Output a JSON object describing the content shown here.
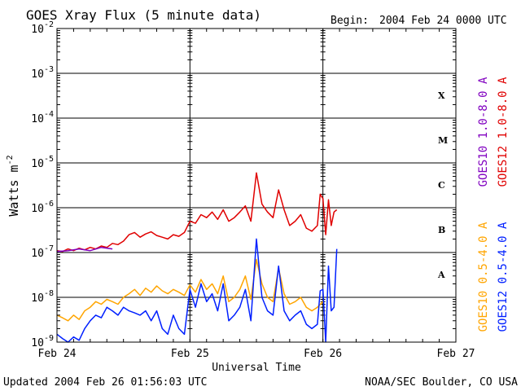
{
  "chart_data": {
    "type": "line",
    "title": "GOES Xray Flux (5 minute data)",
    "begin_label": "Begin:",
    "begin_value": "2004 Feb 24 0000 UTC",
    "ylabel": "Watts m",
    "ylabel_sup": "-2",
    "xlabel": "Universal Time",
    "yscale": "log",
    "ylim": [
      1e-09,
      0.01
    ],
    "xlim": [
      0,
      72
    ],
    "x_unit_note": "",
    "y_ticks": [
      {
        "base": "10",
        "exp": "-2",
        "value": 0.01
      },
      {
        "base": "10",
        "exp": "-3",
        "value": 0.001
      },
      {
        "base": "10",
        "exp": "-4",
        "value": 0.0001
      },
      {
        "base": "10",
        "exp": "-5",
        "value": 1e-05
      },
      {
        "base": "10",
        "exp": "-6",
        "value": 1e-06
      },
      {
        "base": "10",
        "exp": "-7",
        "value": 1e-07
      },
      {
        "base": "10",
        "exp": "-8",
        "value": 1e-08
      },
      {
        "base": "10",
        "exp": "-9",
        "value": 1e-09
      }
    ],
    "x_ticks": [
      {
        "label": "Feb 24",
        "hour": 0
      },
      {
        "label": "Feb 25",
        "hour": 24
      },
      {
        "label": "Feb 26",
        "hour": 48
      },
      {
        "label": "Feb 27",
        "hour": 72
      }
    ],
    "flare_classes": [
      {
        "label": "X",
        "value": 0.00032
      },
      {
        "label": "M",
        "value": 3.2e-05
      },
      {
        "label": "C",
        "value": 3.2e-06
      },
      {
        "label": "B",
        "value": 3.2e-07
      },
      {
        "label": "A",
        "value": 3.2e-08
      }
    ],
    "legend": [
      {
        "text": "GOES10 1.0-8.0 A",
        "color": "#8000c0",
        "group": "long"
      },
      {
        "text": "GOES12 1.0-8.0 A",
        "color": "#e00000",
        "group": "long"
      },
      {
        "text": "GOES10 0.5-4.0 A",
        "color": "#ffa500",
        "group": "short"
      },
      {
        "text": "GOES12 0.5-4.0 A",
        "color": "#0020ff",
        "group": "short"
      }
    ],
    "series": [
      {
        "name": "GOES12 1.0-8.0 A",
        "color": "#e00000",
        "x": [
          0,
          1,
          2,
          3,
          4,
          5,
          6,
          7,
          8,
          9,
          10,
          11,
          12,
          13,
          14,
          15,
          16,
          17,
          18,
          19,
          20,
          21,
          22,
          23,
          24,
          25,
          26,
          27,
          28,
          29,
          30,
          31,
          32,
          33,
          34,
          35,
          36,
          37,
          38,
          39,
          40,
          41,
          42,
          43,
          44,
          45,
          46,
          47,
          47.5,
          48,
          48.5,
          49,
          49.5,
          50,
          50.5
        ],
        "y": [
          1.1e-07,
          1.05e-07,
          1.2e-07,
          1.1e-07,
          1.25e-07,
          1.15e-07,
          1.3e-07,
          1.2e-07,
          1.4e-07,
          1.3e-07,
          1.6e-07,
          1.5e-07,
          1.8e-07,
          2.5e-07,
          2.8e-07,
          2.2e-07,
          2.6e-07,
          2.9e-07,
          2.4e-07,
          2.2e-07,
          2e-07,
          2.5e-07,
          2.3e-07,
          2.8e-07,
          5e-07,
          4.5e-07,
          7e-07,
          6e-07,
          8e-07,
          5.5e-07,
          9e-07,
          5e-07,
          6e-07,
          8e-07,
          1.1e-06,
          5e-07,
          6e-06,
          1.2e-06,
          8e-07,
          6e-07,
          2.5e-06,
          9e-07,
          4e-07,
          5e-07,
          7e-07,
          3.5e-07,
          3e-07,
          4e-07,
          2e-06,
          1.6e-06,
          2.5e-07,
          1.5e-06,
          4e-07,
          8e-07,
          9e-07
        ]
      },
      {
        "name": "GOES10 1.0-8.0 A",
        "color": "#8000c0",
        "x": [
          0,
          2,
          4,
          6,
          8,
          10
        ],
        "y": [
          1.05e-07,
          1.1e-07,
          1.2e-07,
          1.1e-07,
          1.3e-07,
          1.2e-07
        ]
      },
      {
        "name": "GOES10 0.5-4.0 A",
        "color": "#ffa500",
        "x": [
          0,
          1,
          2,
          3,
          4,
          5,
          6,
          7,
          8,
          9,
          10,
          11,
          12,
          13,
          14,
          15,
          16,
          17,
          18,
          19,
          20,
          21,
          22,
          23,
          24,
          25,
          26,
          27,
          28,
          29,
          30,
          31,
          32,
          33,
          34,
          35,
          36,
          37,
          38,
          39,
          40,
          41,
          42,
          43,
          44,
          45,
          46,
          47,
          48
        ],
        "y": [
          4e-09,
          3.5e-09,
          3e-09,
          4e-09,
          3.2e-09,
          5e-09,
          6e-09,
          8e-09,
          7e-09,
          9e-09,
          8e-09,
          7e-09,
          1e-08,
          1.2e-08,
          1.5e-08,
          1.1e-08,
          1.6e-08,
          1.3e-08,
          1.8e-08,
          1.4e-08,
          1.2e-08,
          1.5e-08,
          1.3e-08,
          1.1e-08,
          1.9e-08,
          1.3e-08,
          2.5e-08,
          1.5e-08,
          2e-08,
          1.2e-08,
          3e-08,
          8e-09,
          1e-08,
          1.5e-08,
          3e-08,
          9e-09,
          7e-08,
          2e-08,
          1e-08,
          8e-09,
          4.5e-08,
          1.2e-08,
          7e-09,
          8e-09,
          1e-08,
          6e-09,
          5e-09,
          6e-09,
          8e-09
        ]
      },
      {
        "name": "GOES12 0.5-4.0 A",
        "color": "#0020ff",
        "x": [
          0,
          1,
          2,
          3,
          4,
          5,
          6,
          7,
          8,
          9,
          10,
          11,
          12,
          13,
          14,
          15,
          16,
          17,
          18,
          19,
          20,
          21,
          22,
          23,
          24,
          25,
          26,
          27,
          28,
          29,
          30,
          31,
          32,
          33,
          34,
          35,
          36,
          37,
          38,
          39,
          40,
          41,
          42,
          43,
          44,
          45,
          46,
          47,
          47.5,
          48,
          48.5,
          49,
          49.5,
          50,
          50.5
        ],
        "y": [
          1.5e-09,
          1.2e-09,
          1e-09,
          1.3e-09,
          1.1e-09,
          2e-09,
          3e-09,
          4e-09,
          3.5e-09,
          6e-09,
          5e-09,
          4e-09,
          6e-09,
          5e-09,
          4.5e-09,
          4e-09,
          5e-09,
          3e-09,
          5e-09,
          2e-09,
          1.5e-09,
          4e-09,
          2e-09,
          1.5e-09,
          1.5e-08,
          6e-09,
          2e-08,
          8e-09,
          1.2e-08,
          5e-09,
          2e-08,
          3e-09,
          4e-09,
          6e-09,
          1.5e-08,
          3e-09,
          2e-07,
          1e-08,
          5e-09,
          4e-09,
          5e-08,
          5e-09,
          3e-09,
          4e-09,
          5e-09,
          2.5e-09,
          2e-09,
          2.5e-09,
          1.4e-08,
          1.5e-08,
          1e-09,
          5e-08,
          5e-09,
          6e-09,
          1.2e-07
        ]
      }
    ]
  },
  "footer": {
    "updated": "Updated 2004 Feb 26 01:56:03 UTC",
    "credit": "NOAA/SEC Boulder, CO USA"
  }
}
